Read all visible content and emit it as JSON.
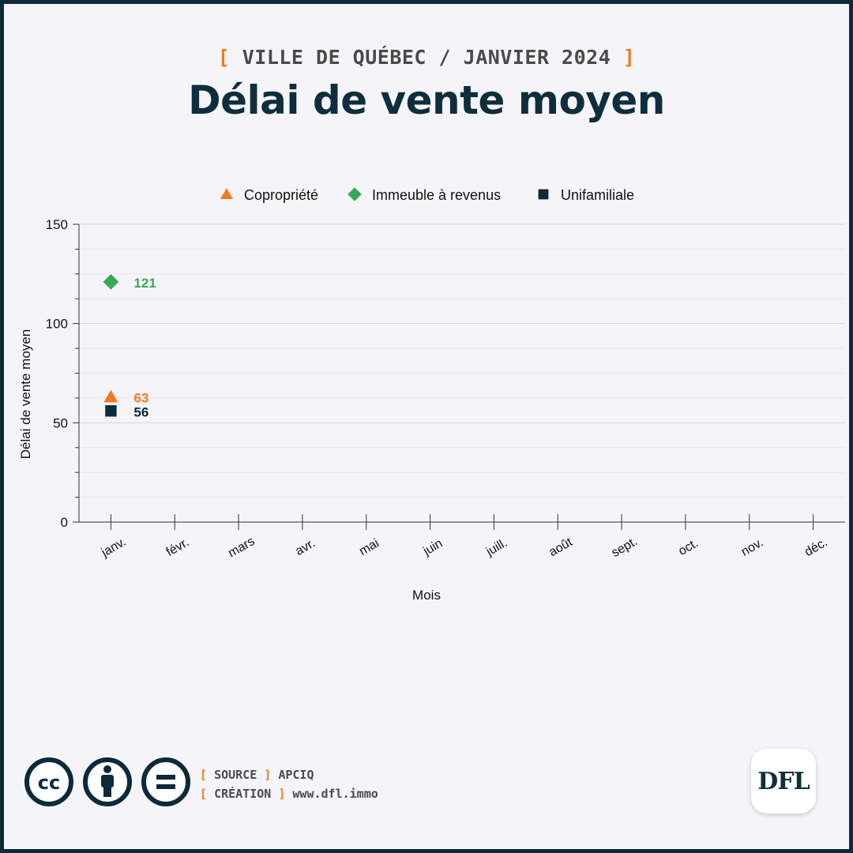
{
  "header": {
    "kicker_open": "[",
    "kicker_text": "VILLE DE QUÉBEC / JANVIER 2024",
    "kicker_close": "]",
    "title": "Délai de vente moyen"
  },
  "colors": {
    "orange": "#f07b1e",
    "green": "#3aa756",
    "navy": "#0b2a3a",
    "grid": "#dcdce2",
    "axis": "#333333"
  },
  "chart_data": {
    "type": "scatter",
    "categories": [
      "janv.",
      "févr.",
      "mars",
      "avr.",
      "mai",
      "juin",
      "juill.",
      "août",
      "sept.",
      "oct.",
      "nov.",
      "déc."
    ],
    "xlabel": "Mois",
    "ylabel": "Délai de vente moyen",
    "ylim": [
      0,
      150
    ],
    "yticks": [
      0,
      50,
      100,
      150
    ],
    "grid": true,
    "legend_position": "top",
    "series": [
      {
        "name": "Copropriété",
        "marker": "triangle",
        "color": "#f07b1e",
        "values": [
          63
        ]
      },
      {
        "name": "Immeuble à revenus",
        "marker": "diamond",
        "color": "#3aa756",
        "values": [
          121
        ]
      },
      {
        "name": "Unifamiliale",
        "marker": "square",
        "color": "#0b2a3a",
        "values": [
          56
        ]
      }
    ]
  },
  "footer": {
    "source_label": "SOURCE",
    "source_value": "APCIQ",
    "creation_label": "CRÉATION",
    "creation_value": "www.dfl.immo",
    "bracket_open": "[",
    "bracket_close": "]",
    "license_icons": [
      "cc-icon",
      "by-person-icon",
      "nd-equals-icon"
    ],
    "logo_text": "DFL"
  }
}
